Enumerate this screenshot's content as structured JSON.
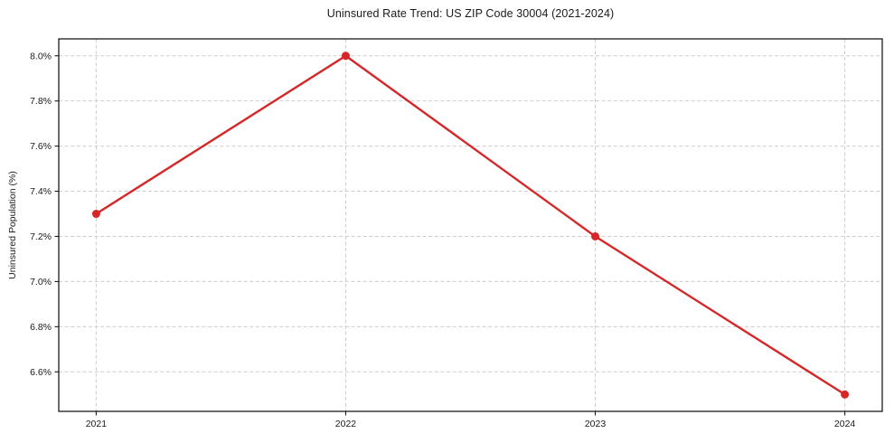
{
  "chart_data": {
    "type": "line",
    "title": "Uninsured Rate Trend: US ZIP Code 30004 (2021-2024)",
    "xlabel": "",
    "ylabel": "Uninsured Population (%)",
    "x": [
      2021,
      2022,
      2023,
      2024
    ],
    "xtick_labels": [
      "2021",
      "2022",
      "2023",
      "2024"
    ],
    "values": [
      7.3,
      8.0,
      7.2,
      6.5
    ],
    "yticks": [
      6.6,
      6.8,
      7.0,
      7.2,
      7.4,
      7.6,
      7.8,
      8.0
    ],
    "ytick_labels": [
      "6.6%",
      "6.8%",
      "7.0%",
      "7.2%",
      "7.4%",
      "7.6%",
      "7.8%",
      "8.0%"
    ],
    "xlim": [
      2020.85,
      2024.15
    ],
    "ylim": [
      6.425,
      8.075
    ],
    "grid": true,
    "grid_style": "dashed",
    "legend": false,
    "marker": "circle",
    "colors": {
      "line": "#d62728",
      "marker": "#d62728",
      "grid": "#cdcdcd",
      "axis": "#1a1a1a",
      "text": "#1a1a1a",
      "background": "#ffffff"
    }
  }
}
